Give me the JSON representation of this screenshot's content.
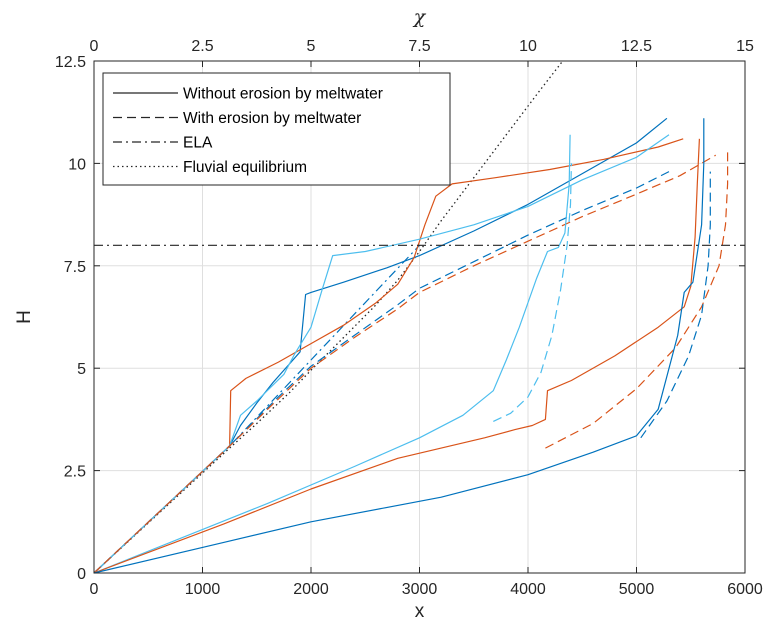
{
  "chart_data": {
    "type": "line",
    "xlabel": "x",
    "ylabel": "H",
    "top_xlabel": "χ",
    "xlim": [
      0,
      6000
    ],
    "ylim": [
      0,
      12.5
    ],
    "top_xlim": [
      0,
      15
    ],
    "x_ticks": [
      "0",
      "1000",
      "2000",
      "3000",
      "4000",
      "5000",
      "6000"
    ],
    "y_ticks": [
      "0",
      "2.5",
      "5",
      "7.5",
      "10",
      "12.5"
    ],
    "top_ticks": [
      "0",
      "2.5",
      "5",
      "7.5",
      "10",
      "12.5",
      "15"
    ],
    "grid": true,
    "legend_position": "top-left",
    "legend": [
      {
        "label": "Without erosion by meltwater",
        "style": "solid"
      },
      {
        "label": "With erosion by meltwater",
        "style": "dashed"
      },
      {
        "label": "ELA",
        "style": "dashdot"
      },
      {
        "label": "Fluvial equilibrium",
        "style": "dotted"
      }
    ],
    "colors": {
      "blue": "#0072bd",
      "orange": "#d95319",
      "cyan": "#4dbeee",
      "ref": "#262626"
    },
    "series": [
      {
        "color": "blue",
        "style": "dashdot",
        "axis": "bottom",
        "points": [
          [
            0,
            0
          ],
          [
            1250,
            3.1
          ],
          [
            3000,
            8.0
          ]
        ]
      },
      {
        "color": "blue",
        "style": "dotted",
        "axis": "bottom",
        "points": [
          [
            0,
            0
          ],
          [
            1250,
            3.05
          ],
          [
            1500,
            3.65
          ],
          [
            1800,
            4.4
          ],
          [
            2000,
            4.95
          ],
          [
            2300,
            5.75
          ],
          [
            2600,
            6.55
          ],
          [
            2800,
            7.15
          ],
          [
            3000,
            7.85
          ],
          [
            3200,
            8.6
          ],
          [
            3500,
            9.65
          ],
          [
            3800,
            10.7
          ],
          [
            4100,
            11.75
          ],
          [
            4320,
            12.5
          ]
        ]
      },
      {
        "color": "blue",
        "style": "solid",
        "axis": "bottom",
        "points": [
          [
            0,
            0
          ],
          [
            1250,
            3.1
          ],
          [
            1350,
            3.6
          ],
          [
            1500,
            4.15
          ],
          [
            1650,
            4.65
          ],
          [
            1800,
            5.1
          ],
          [
            1900,
            5.4
          ],
          [
            1950,
            6.8
          ],
          [
            2000,
            6.85
          ],
          [
            2300,
            7.1
          ],
          [
            2700,
            7.45
          ],
          [
            3000,
            7.75
          ],
          [
            3500,
            8.35
          ],
          [
            4000,
            9.0
          ],
          [
            4500,
            9.75
          ],
          [
            5000,
            10.5
          ],
          [
            5280,
            11.1
          ]
        ]
      },
      {
        "color": "orange",
        "style": "solid",
        "axis": "bottom",
        "points": [
          [
            0,
            0
          ],
          [
            1250,
            3.1
          ],
          [
            1260,
            4.45
          ],
          [
            1400,
            4.75
          ],
          [
            1700,
            5.15
          ],
          [
            2000,
            5.6
          ],
          [
            2300,
            6.05
          ],
          [
            2600,
            6.6
          ],
          [
            2800,
            7.05
          ],
          [
            2950,
            7.7
          ],
          [
            3050,
            8.5
          ],
          [
            3150,
            9.2
          ],
          [
            3300,
            9.5
          ],
          [
            3700,
            9.65
          ],
          [
            4200,
            9.85
          ],
          [
            4700,
            10.1
          ],
          [
            5200,
            10.4
          ],
          [
            5430,
            10.6
          ]
        ]
      },
      {
        "color": "cyan",
        "style": "solid",
        "axis": "bottom",
        "points": [
          [
            0,
            0
          ],
          [
            1250,
            3.1
          ],
          [
            1350,
            3.85
          ],
          [
            1500,
            4.2
          ],
          [
            1750,
            4.85
          ],
          [
            1850,
            5.35
          ],
          [
            2000,
            6.0
          ],
          [
            2100,
            6.9
          ],
          [
            2200,
            7.75
          ],
          [
            2500,
            7.85
          ],
          [
            3000,
            8.15
          ],
          [
            3500,
            8.5
          ],
          [
            4000,
            8.95
          ],
          [
            4500,
            9.6
          ],
          [
            5000,
            10.15
          ],
          [
            5300,
            10.7
          ]
        ]
      },
      {
        "color": "blue",
        "style": "dashed",
        "axis": "bottom",
        "points": [
          [
            0,
            0
          ],
          [
            1250,
            3.1
          ],
          [
            1700,
            4.3
          ],
          [
            2000,
            5.05
          ],
          [
            2400,
            5.8
          ],
          [
            2800,
            6.55
          ],
          [
            3000,
            6.95
          ],
          [
            3500,
            7.6
          ],
          [
            4000,
            8.25
          ],
          [
            4500,
            8.85
          ],
          [
            5000,
            9.4
          ],
          [
            5300,
            9.8
          ]
        ]
      },
      {
        "color": "orange",
        "style": "dashed",
        "axis": "bottom",
        "points": [
          [
            0,
            0
          ],
          [
            1250,
            3.1
          ],
          [
            1700,
            4.25
          ],
          [
            2000,
            5.0
          ],
          [
            2400,
            5.75
          ],
          [
            2800,
            6.45
          ],
          [
            3000,
            6.85
          ],
          [
            3500,
            7.5
          ],
          [
            4000,
            8.1
          ],
          [
            4500,
            8.7
          ],
          [
            5000,
            9.25
          ],
          [
            5400,
            9.7
          ],
          [
            5730,
            10.2
          ]
        ]
      },
      {
        "color": "cyan",
        "style": "solid",
        "axis": "top",
        "points": [
          [
            0,
            0
          ],
          [
            2,
            0.85
          ],
          [
            4,
            1.7
          ],
          [
            6,
            2.6
          ],
          [
            7.5,
            3.3
          ],
          [
            8.5,
            3.85
          ],
          [
            9.2,
            4.45
          ],
          [
            9.5,
            5.2
          ],
          [
            9.8,
            6.0
          ],
          [
            10.2,
            7.2
          ],
          [
            10.45,
            7.85
          ],
          [
            10.7,
            7.95
          ],
          [
            10.85,
            8.3
          ],
          [
            10.95,
            9.5
          ],
          [
            10.97,
            10.7
          ]
        ]
      },
      {
        "color": "cyan",
        "style": "dashed",
        "axis": "top",
        "points": [
          [
            9.2,
            3.7
          ],
          [
            9.6,
            3.9
          ],
          [
            10.0,
            4.3
          ],
          [
            10.3,
            4.9
          ],
          [
            10.55,
            5.8
          ],
          [
            10.75,
            6.9
          ],
          [
            10.9,
            8.0
          ],
          [
            10.98,
            9.0
          ],
          [
            11.0,
            10.0
          ]
        ]
      },
      {
        "color": "orange",
        "style": "solid",
        "axis": "top",
        "points": [
          [
            0,
            0
          ],
          [
            3,
            1.2
          ],
          [
            5,
            2.05
          ],
          [
            7,
            2.8
          ],
          [
            8,
            3.05
          ],
          [
            9,
            3.3
          ],
          [
            9.7,
            3.5
          ],
          [
            10.1,
            3.6
          ],
          [
            10.4,
            3.75
          ],
          [
            10.45,
            4.45
          ],
          [
            11,
            4.7
          ],
          [
            12,
            5.3
          ],
          [
            13,
            6.0
          ],
          [
            13.6,
            6.5
          ],
          [
            13.75,
            7.0
          ],
          [
            13.85,
            8.2
          ],
          [
            13.9,
            9.5
          ],
          [
            13.95,
            10.6
          ]
        ]
      },
      {
        "color": "orange",
        "style": "dashed",
        "axis": "top",
        "points": [
          [
            10.4,
            3.05
          ],
          [
            11.5,
            3.65
          ],
          [
            12.5,
            4.5
          ],
          [
            13.4,
            5.5
          ],
          [
            14.0,
            6.5
          ],
          [
            14.4,
            7.5
          ],
          [
            14.55,
            8.5
          ],
          [
            14.6,
            9.5
          ],
          [
            14.6,
            10.3
          ]
        ]
      },
      {
        "color": "blue",
        "style": "solid",
        "axis": "top",
        "points": [
          [
            0,
            0
          ],
          [
            3,
            0.75
          ],
          [
            5,
            1.25
          ],
          [
            8,
            1.85
          ],
          [
            10,
            2.4
          ],
          [
            11.5,
            2.95
          ],
          [
            12.5,
            3.35
          ],
          [
            13.0,
            4.0
          ],
          [
            13.45,
            5.8
          ],
          [
            13.6,
            6.85
          ],
          [
            13.8,
            7.1
          ],
          [
            14.0,
            8.5
          ],
          [
            14.05,
            10.0
          ],
          [
            14.05,
            11.1
          ]
        ]
      },
      {
        "color": "blue",
        "style": "dashed",
        "axis": "top",
        "points": [
          [
            12.6,
            3.3
          ],
          [
            13.2,
            4.2
          ],
          [
            13.7,
            5.3
          ],
          [
            14.0,
            6.3
          ],
          [
            14.15,
            7.5
          ],
          [
            14.2,
            8.5
          ],
          [
            14.2,
            9.8
          ]
        ]
      }
    ],
    "ela_level": 8.0
  }
}
